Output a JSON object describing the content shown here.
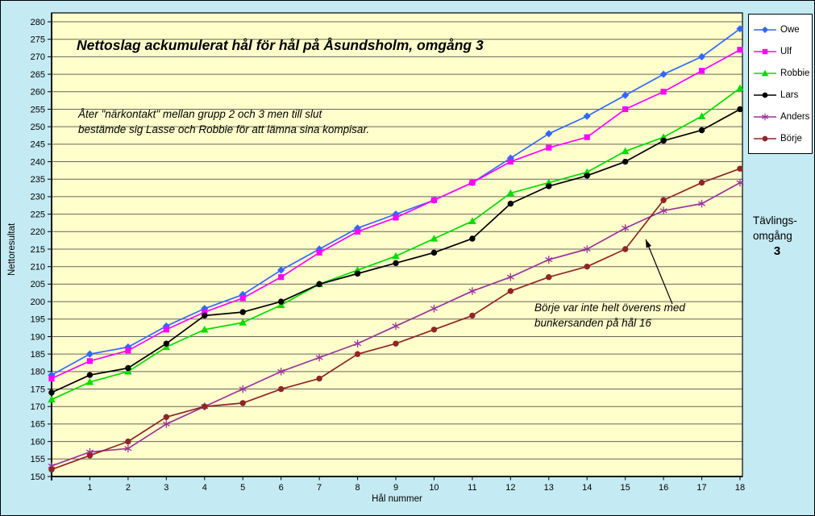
{
  "title": "Nettoslag ackumulerat hål för hål på Åsundsholm, omgång 3",
  "notes": {
    "group_note_line1": "Åter \"närkontakt\" mellan grupp 2 och 3 men till slut",
    "group_note_line2": "bestämde sig Lasse och Robbie för att lämna sina kompisar.",
    "bunker_note_line1": "Börje var inte helt överens med",
    "bunker_note_line2": "bunkersanden på hål 16"
  },
  "side_label": {
    "line1": "Tävlings-",
    "line2": "omgång",
    "line3": "3"
  },
  "axes": {
    "y_title": "Nettoresultat",
    "x_title": "Hål nummer",
    "y_min": 150,
    "y_max": 280,
    "y_step": 5,
    "y_ticks": [
      150,
      155,
      160,
      165,
      170,
      175,
      180,
      185,
      190,
      195,
      200,
      205,
      210,
      215,
      220,
      225,
      230,
      235,
      240,
      245,
      250,
      255,
      260,
      265,
      270,
      275,
      280
    ]
  },
  "chart_data": {
    "type": "line",
    "title": "Nettoslag ackumulerat hål för hål på Åsundsholm, omgång 3",
    "xlabel": "Hål nummer",
    "ylabel": "Nettoresultat",
    "ylim": [
      150,
      282.5
    ],
    "grid": "horizontal",
    "legend_position": "top-right",
    "categories": [
      "",
      "1",
      "2",
      "3",
      "4",
      "5",
      "6",
      "7",
      "8",
      "9",
      "10",
      "11",
      "12",
      "13",
      "14",
      "15",
      "16",
      "17",
      "18"
    ],
    "series": [
      {
        "name": "Owe",
        "color": "#3366ff",
        "marker": "diamond",
        "values": [
          179,
          185,
          187,
          193,
          198,
          202,
          209,
          215,
          221,
          225,
          229,
          234,
          241,
          248,
          253,
          259,
          265,
          270,
          278
        ]
      },
      {
        "name": "Ulf",
        "color": "#ff00ff",
        "marker": "square",
        "values": [
          178,
          183,
          186,
          192,
          197,
          201,
          207,
          214,
          220,
          224,
          229,
          234,
          240,
          244,
          247,
          255,
          260,
          266,
          272
        ]
      },
      {
        "name": "Robbie",
        "color": "#00dd00",
        "marker": "triangle",
        "values": [
          172,
          177,
          180,
          187,
          192,
          194,
          199,
          205,
          209,
          213,
          218,
          223,
          231,
          234,
          237,
          243,
          247,
          253,
          261
        ]
      },
      {
        "name": "Lars",
        "color": "#000000",
        "marker": "circle",
        "values": [
          174,
          179,
          181,
          188,
          196,
          197,
          200,
          205,
          208,
          211,
          214,
          218,
          228,
          233,
          236,
          240,
          246,
          249,
          255
        ]
      },
      {
        "name": "Anders",
        "color": "#993399",
        "marker": "asterisk",
        "values": [
          153,
          157,
          158,
          165,
          170,
          175,
          180,
          184,
          188,
          193,
          198,
          203,
          207,
          212,
          215,
          221,
          226,
          228,
          234
        ]
      },
      {
        "name": "Börje",
        "color": "#8f2525",
        "marker": "circle",
        "values": [
          152,
          156,
          160,
          167,
          170,
          171,
          175,
          178,
          185,
          188,
          192,
          196,
          203,
          207,
          210,
          215,
          229,
          234,
          238
        ]
      }
    ]
  },
  "colors": {
    "canvas": "#c4eaf3",
    "plot_bg": "#ffffcc",
    "grid": "#66665e",
    "axis": "#000000",
    "legend_bg": "#ffffff"
  }
}
